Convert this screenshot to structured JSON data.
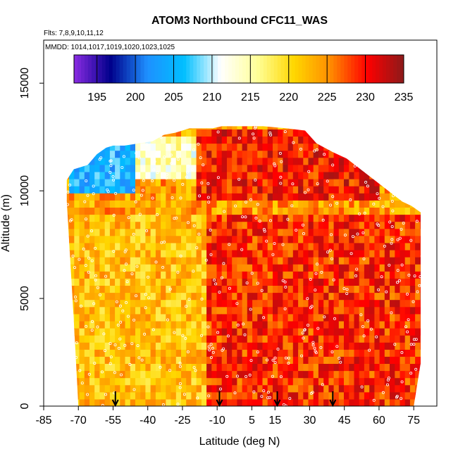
{
  "chart_data": {
    "type": "heatmap",
    "title": "ATOM3 Northbound CFC11_WAS",
    "subtitle_flights": "Flts: 7,8,9,10,11,12",
    "subtitle_dates": "MMDD: 1014,1017,1019,1020,1023,1025",
    "xlabel": "Latitude (deg N)",
    "ylabel": "Altitude (m)",
    "xlim": [
      -85,
      85
    ],
    "ylim": [
      0,
      17000
    ],
    "x_ticks": [
      -85,
      -70,
      -55,
      -40,
      -25,
      -10,
      5,
      15,
      30,
      45,
      60,
      75
    ],
    "y_ticks": [
      0,
      5000,
      10000,
      15000
    ],
    "colorbar": {
      "range": [
        192,
        235
      ],
      "ticks": [
        195,
        200,
        205,
        210,
        215,
        220,
        225,
        230,
        235
      ],
      "colors": [
        "#8a2be2",
        "#00008b",
        "#1e90ff",
        "#00bfff",
        "#ffffff",
        "#ffff99",
        "#ffd700",
        "#ff8c00",
        "#ff0000",
        "#8b1a1a"
      ]
    },
    "ceiling_profile": {
      "x": [
        -75,
        -72,
        -66,
        -62,
        -58,
        -55,
        -50,
        -44,
        -38,
        -33,
        -28,
        -22,
        -17,
        -12,
        -8,
        0,
        10,
        20,
        28,
        33,
        40,
        46,
        52,
        58,
        64,
        70,
        74,
        78
      ],
      "y": [
        10500,
        11000,
        11200,
        11700,
        12000,
        12100,
        12100,
        12200,
        12300,
        12600,
        12700,
        12900,
        12900,
        12900,
        13000,
        13000,
        13000,
        12900,
        12800,
        12200,
        11800,
        11500,
        11000,
        10500,
        10000,
        9500,
        9300,
        9000
      ]
    },
    "floor_profile": {
      "x": [
        -75,
        -72,
        -70,
        -60,
        -45,
        -30,
        -15,
        0,
        20,
        40,
        60,
        75,
        78
      ],
      "y": [
        9500,
        4000,
        0,
        0,
        0,
        0,
        0,
        0,
        0,
        0,
        0,
        0,
        2000
      ]
    },
    "field_zones": [
      {
        "x_range": [
          -75,
          -15
        ],
        "y_range": [
          0,
          9000
        ],
        "value": 222
      },
      {
        "x_range": [
          -15,
          80
        ],
        "y_range": [
          0,
          9000
        ],
        "value": 229
      },
      {
        "x_range": [
          -75,
          -45
        ],
        "y_range": [
          10000,
          12500
        ],
        "value": 205
      },
      {
        "x_range": [
          -45,
          -20
        ],
        "y_range": [
          10500,
          12500
        ],
        "value": 214
      },
      {
        "x_range": [
          -20,
          60
        ],
        "y_range": [
          9500,
          13000
        ],
        "value": 230
      }
    ],
    "markers": {
      "type": "arrow",
      "x": [
        -54,
        -9,
        16,
        40
      ]
    },
    "legend": "colorbar-top",
    "grid": false
  }
}
